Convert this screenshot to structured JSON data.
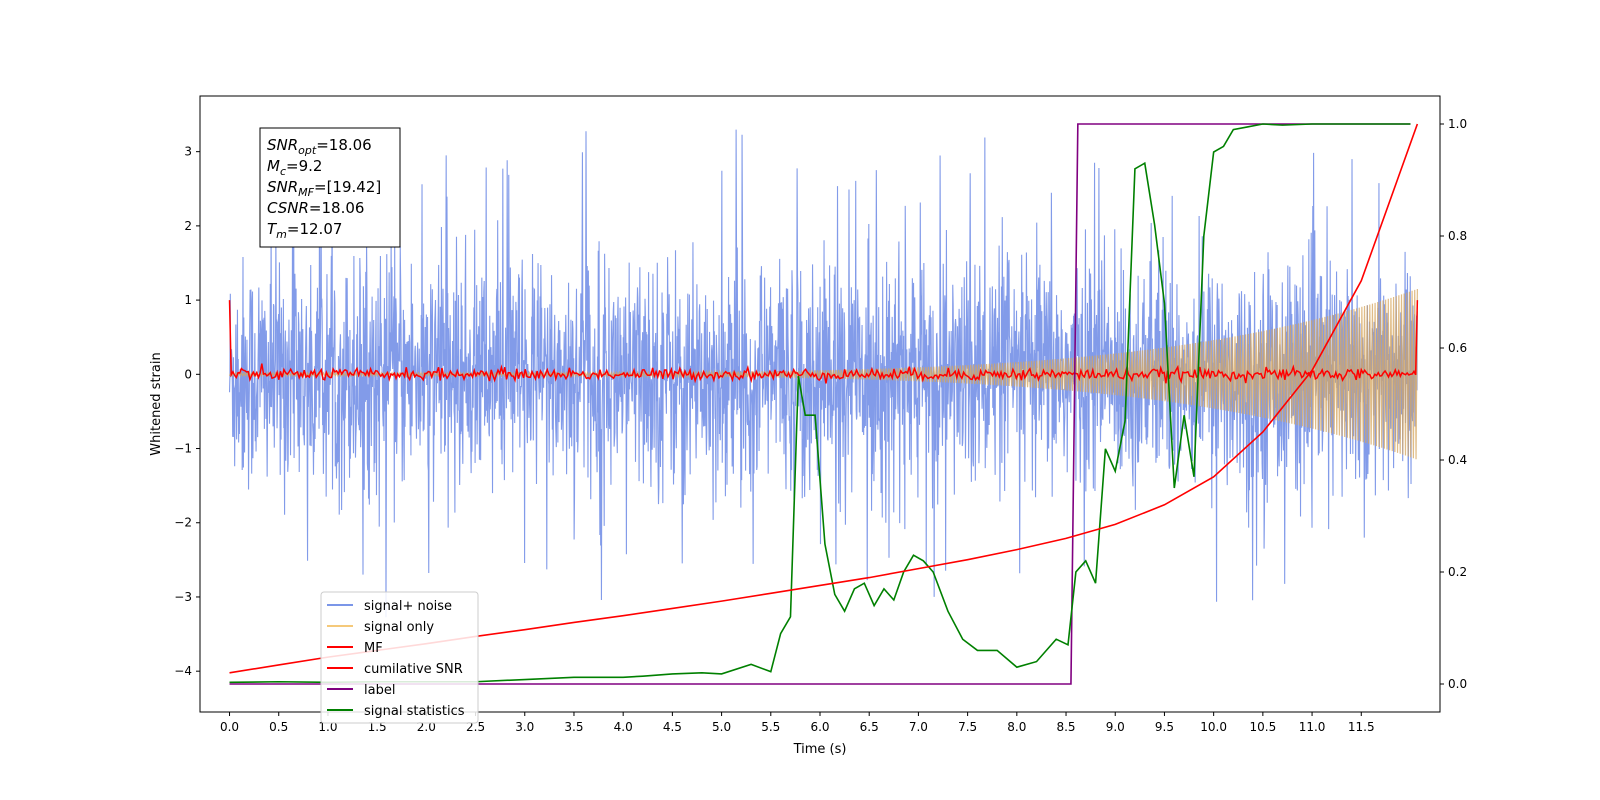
{
  "chart_data": {
    "type": "line",
    "xlabel": "Time (s)",
    "ylabel": "Whitened strain",
    "xlim": [
      -0.3,
      12.3
    ],
    "ylim_left": [
      -4.55,
      3.75
    ],
    "ylim_right": [
      -0.05,
      1.05
    ],
    "x_ticks": [
      0.0,
      0.5,
      1.0,
      1.5,
      2.0,
      2.5,
      3.0,
      3.5,
      4.0,
      4.5,
      5.0,
      5.5,
      6.0,
      6.5,
      7.0,
      7.5,
      8.0,
      8.5,
      9.0,
      9.5,
      10.0,
      10.5,
      11.0,
      11.5
    ],
    "x_tick_labels": [
      "0.0",
      "0.5",
      "1.0",
      "1.5",
      "2.0",
      "2.5",
      "3.0",
      "3.5",
      "4.0",
      "4.5",
      "5.0",
      "5.5",
      "6.0",
      "6.5",
      "7.0",
      "7.5",
      "8.0",
      "8.5",
      "9.0",
      "9.5",
      "10.0",
      "10.5",
      "11.0",
      "11.5"
    ],
    "y_ticks_left": [
      3,
      2,
      1,
      0,
      -1,
      -2,
      -3,
      -4
    ],
    "y_tick_labels_left": [
      "3",
      "2",
      "1",
      "0",
      "−1",
      "−2",
      "−3",
      "−4"
    ],
    "y_ticks_right": [
      1.0,
      0.8,
      0.6,
      0.4,
      0.2,
      0.0
    ],
    "y_tick_labels_right": [
      "1.0",
      "0.8",
      "0.6",
      "0.4",
      "0.2",
      "0.0"
    ],
    "annotation": {
      "lines": [
        {
          "sym": "SNR",
          "sub": "opt",
          "val": "=18.06"
        },
        {
          "sym": "M",
          "sub": "c",
          "val": "=9.2"
        },
        {
          "sym": "SNR",
          "sub": "MF",
          "val": "=[19.42]"
        },
        {
          "sym": "CSNR",
          "sub": "",
          "val": "=18.06"
        },
        {
          "sym": "T",
          "sub": "m",
          "val": "=12.07"
        }
      ]
    },
    "series": [
      {
        "name": "signal+ noise",
        "axis": "left",
        "color": "#7b96e8",
        "style": "noise",
        "t_range": [
          0.0,
          12.07
        ],
        "upper_envelope": 1.9,
        "lower_envelope": -1.8,
        "max_spike": 3.42,
        "min_spike": -3.65
      },
      {
        "name": "signal only",
        "axis": "left",
        "color": "#f5c97a",
        "style": "chirp",
        "t_range": [
          0.0,
          12.07
        ],
        "amplitude_start": 0.02,
        "amplitude_end": 1.15
      },
      {
        "name": "MF",
        "axis": "left",
        "color": "#ff0000",
        "style": "mf",
        "t_range": [
          0.0,
          12.07
        ],
        "start_value": 1.0,
        "end_value": 1.0,
        "baseline": 0.0,
        "jitter": 0.08
      },
      {
        "name": "cumilative SNR",
        "axis": "right",
        "color": "#ff0000",
        "x": [
          0.0,
          0.5,
          1.0,
          1.5,
          2.0,
          2.5,
          3.0,
          3.5,
          4.0,
          4.5,
          5.0,
          5.5,
          6.0,
          6.5,
          7.0,
          7.5,
          8.0,
          8.5,
          9.0,
          9.5,
          10.0,
          10.5,
          11.0,
          11.5,
          12.07
        ],
        "y": [
          0.02,
          0.034,
          0.048,
          0.06,
          0.072,
          0.085,
          0.097,
          0.11,
          0.122,
          0.135,
          0.148,
          0.162,
          0.176,
          0.19,
          0.206,
          0.222,
          0.24,
          0.26,
          0.285,
          0.32,
          0.37,
          0.45,
          0.56,
          0.72,
          1.0
        ]
      },
      {
        "name": "label",
        "axis": "right",
        "color": "#800080",
        "x": [
          0.0,
          8.55,
          8.62,
          12.0
        ],
        "y": [
          0.0,
          0.0,
          1.0,
          1.0
        ]
      },
      {
        "name": "signal statistics",
        "axis": "right",
        "color": "#008000",
        "x": [
          0.0,
          0.5,
          1.0,
          1.5,
          2.0,
          2.5,
          3.0,
          3.5,
          4.0,
          4.2,
          4.5,
          4.8,
          5.0,
          5.3,
          5.5,
          5.6,
          5.7,
          5.78,
          5.85,
          5.95,
          6.05,
          6.15,
          6.25,
          6.35,
          6.45,
          6.55,
          6.65,
          6.75,
          6.85,
          6.95,
          7.05,
          7.15,
          7.3,
          7.45,
          7.6,
          7.8,
          8.0,
          8.2,
          8.4,
          8.52,
          8.6,
          8.7,
          8.8,
          8.9,
          9.0,
          9.1,
          9.2,
          9.3,
          9.4,
          9.5,
          9.6,
          9.7,
          9.8,
          9.9,
          10.0,
          10.1,
          10.2,
          10.35,
          10.5,
          10.7,
          11.0,
          11.5,
          12.0
        ],
        "y": [
          0.003,
          0.004,
          0.003,
          0.004,
          0.004,
          0.004,
          0.008,
          0.012,
          0.012,
          0.014,
          0.018,
          0.02,
          0.018,
          0.035,
          0.022,
          0.09,
          0.12,
          0.55,
          0.48,
          0.48,
          0.25,
          0.16,
          0.13,
          0.17,
          0.18,
          0.14,
          0.17,
          0.15,
          0.2,
          0.23,
          0.22,
          0.2,
          0.13,
          0.08,
          0.06,
          0.06,
          0.03,
          0.04,
          0.08,
          0.07,
          0.2,
          0.22,
          0.18,
          0.42,
          0.38,
          0.47,
          0.92,
          0.93,
          0.82,
          0.68,
          0.35,
          0.48,
          0.37,
          0.8,
          0.95,
          0.96,
          0.99,
          0.995,
          1.0,
          0.998,
          1.0,
          1.0,
          1.0
        ]
      }
    ],
    "legend": {
      "placement": "lower-left",
      "entries": [
        {
          "label": "signal+ noise",
          "color": "#7b96e8"
        },
        {
          "label": "signal only",
          "color": "#f5c97a"
        },
        {
          "label": "MF",
          "color": "#ff0000"
        },
        {
          "label": "cumilative SNR",
          "color": "#ff0000"
        },
        {
          "label": "label",
          "color": "#800080"
        },
        {
          "label": "signal statistics",
          "color": "#008000"
        }
      ]
    }
  }
}
